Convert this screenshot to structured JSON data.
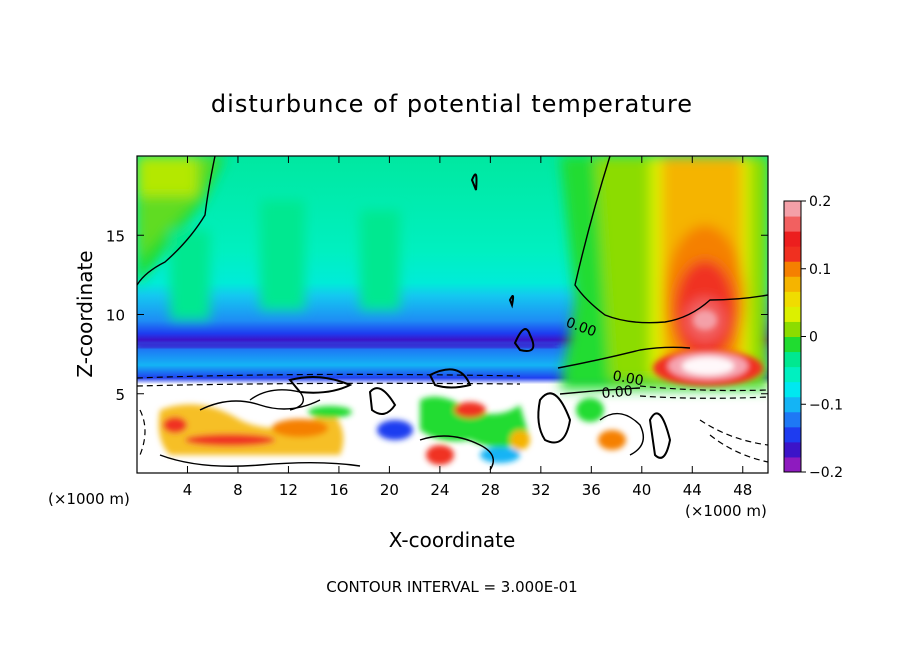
{
  "chart_data": {
    "type": "heatmap",
    "title": "disturbunce of potential temperature",
    "xlabel": "X-coordinate",
    "ylabel": "Z-coordinate",
    "x_unit_left": "(×1000 m)",
    "x_unit_right": "(×1000 m)",
    "xlim": [
      0,
      50
    ],
    "ylim": [
      0,
      20
    ],
    "x_ticks": [
      4,
      8,
      12,
      16,
      20,
      24,
      28,
      32,
      36,
      40,
      44,
      48
    ],
    "y_ticks": [
      5,
      10,
      15
    ],
    "colorbar": {
      "min": -0.2,
      "max": 0.2,
      "tick_labels": [
        "0.2",
        "0.1",
        "0",
        "−0.1",
        "−0.2"
      ],
      "tick_values": [
        0.2,
        0.1,
        0,
        -0.1,
        -0.2
      ],
      "colors": [
        "#8e1bbf",
        "#3c14c8",
        "#1e3cf0",
        "#1e78f5",
        "#14b4f5",
        "#00e8f0",
        "#00f0c0",
        "#00e890",
        "#20dc30",
        "#8cdc00",
        "#dcf000",
        "#f0dc00",
        "#f5b400",
        "#f58000",
        "#f03020",
        "#ec1e1e",
        "#f26060",
        "#f4a0a8"
      ]
    },
    "contour_labels": [
      "0.00",
      "0.00",
      "0.00"
    ],
    "footer": "CONTOUR INTERVAL = 3.000E-01"
  }
}
